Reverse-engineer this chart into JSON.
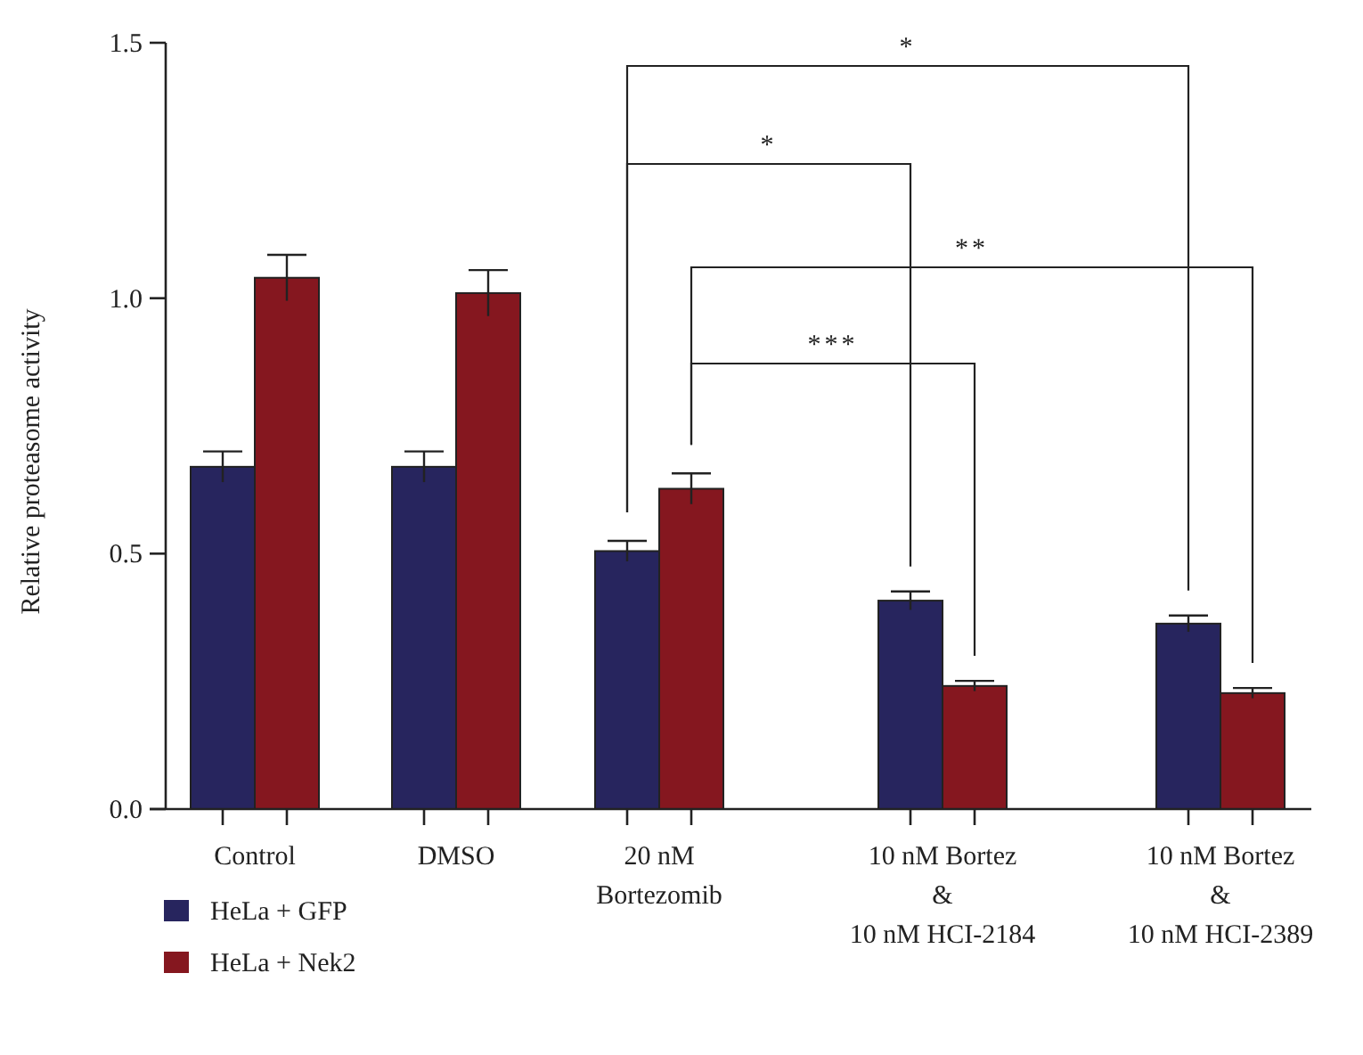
{
  "chart_data": {
    "type": "bar",
    "ylabel": "Relative proteasome activity",
    "categories": [
      "Control",
      "DMSO",
      "20 nM\nBortezomib",
      "10 nM Bortez\n&\n10 nM HCI-2184",
      "10 nM Bortez\n&\n10 nM HCI-2389"
    ],
    "series": [
      {
        "name": "HeLa + GFP",
        "color": "#27255e",
        "values": [
          0.67,
          0.67,
          0.505,
          0.408,
          0.363
        ],
        "errors": [
          0.03,
          0.03,
          0.02,
          0.018,
          0.016
        ]
      },
      {
        "name": "HeLa + Nek2",
        "color": "#85171f",
        "values": [
          1.04,
          1.01,
          0.627,
          0.241,
          0.227
        ],
        "errors": [
          0.045,
          0.045,
          0.03,
          0.01,
          0.01
        ]
      }
    ],
    "ylim": [
      0,
      1.5
    ],
    "yticks": [
      {
        "value": 0,
        "label": "0.0"
      },
      {
        "value": 0.5,
        "label": "0.5"
      },
      {
        "value": 1,
        "label": "1.0"
      },
      {
        "value": 1.5,
        "label": "1.5"
      }
    ],
    "annotations": [
      "*",
      "*",
      "**",
      "***"
    ],
    "legend": "bottom left",
    "grid": false
  }
}
